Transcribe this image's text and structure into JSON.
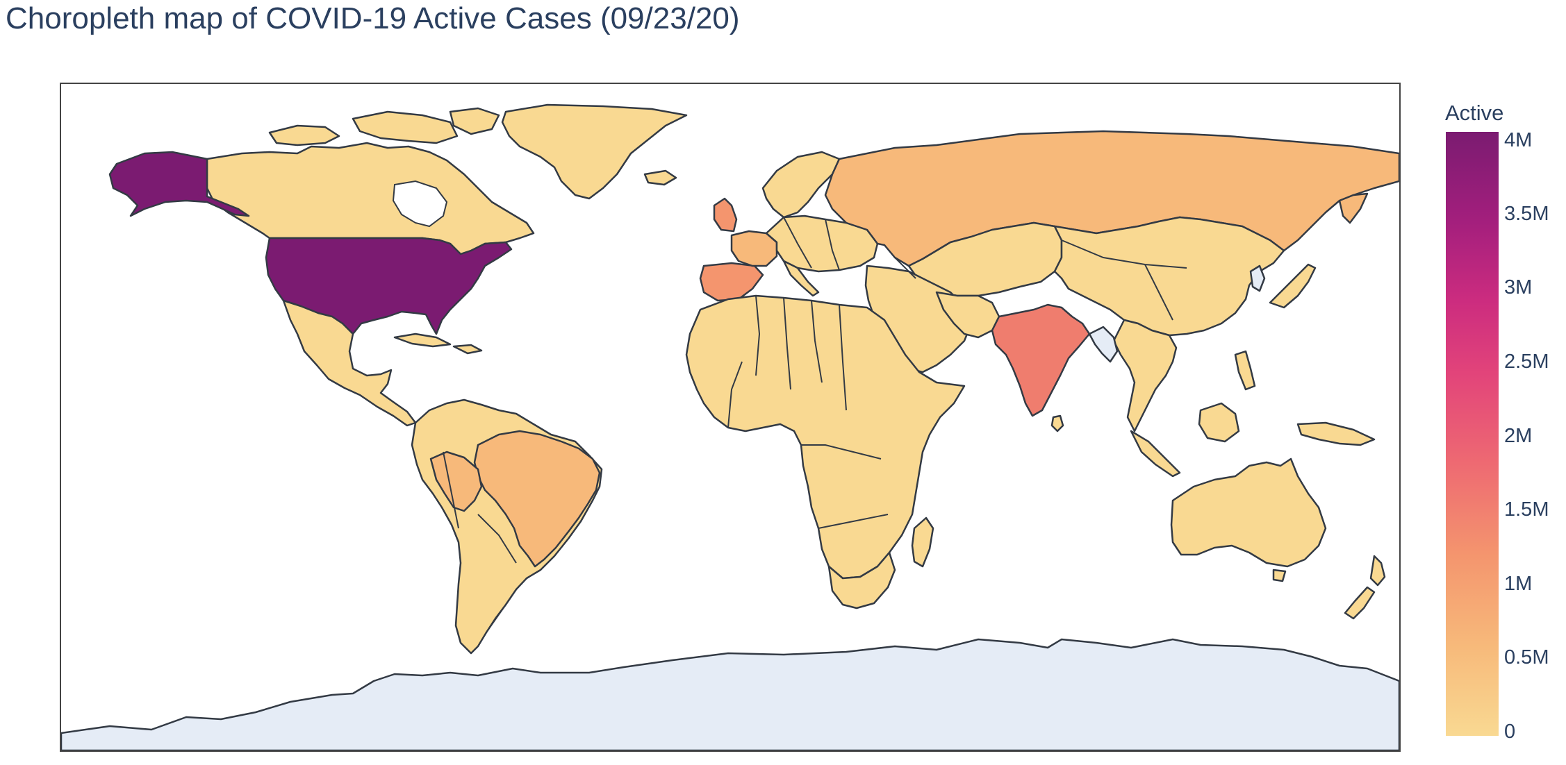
{
  "title": "Choropleth map of COVID-19 Active Cases (09/23/20)",
  "colorbar": {
    "title": "Active",
    "ticks": [
      "4M",
      "3.5M",
      "3M",
      "2.5M",
      "2M",
      "1.5M",
      "1M",
      "0.5M",
      "0"
    ],
    "colorscale": [
      "#7b1b71",
      "#a41f7d",
      "#cc2c7f",
      "#e2447a",
      "#ee6a72",
      "#f4956e",
      "#f7b97a",
      "#f9d992"
    ]
  },
  "colors": {
    "no_data": "#e5ecf6",
    "level_low": "#f9d992",
    "level_mid_low": "#f7b97a",
    "level_mid": "#f4956e",
    "level_high": "#ef7d6e",
    "level_max": "#7b1b71",
    "border": "#333a44",
    "title_text": "#2a3f5f"
  }
}
